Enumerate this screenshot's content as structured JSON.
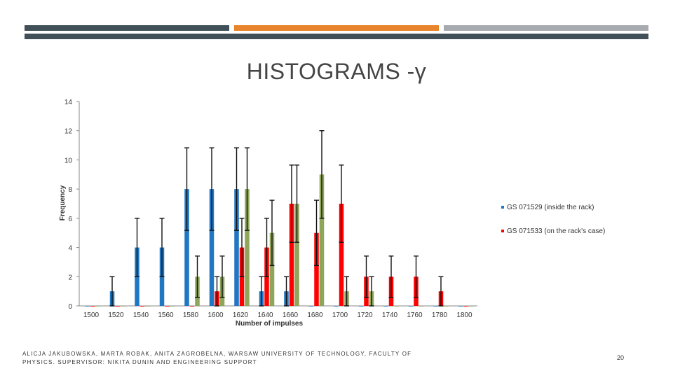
{
  "header_bars": [
    {
      "color": "#404f58"
    },
    {
      "color": "#e8842c"
    },
    {
      "color": "#a7abaf"
    }
  ],
  "slide_title": "HISTOGRAMS -γ",
  "footer_text": "ALICJA JAKUBOWSKA, MARTA ROBAK, ANITA ZAGROBELNA, WARSAW UNIVERSITY OF TECHNOLOGY, FACULTY OF PHYSICS. SUPERVISOR: NIKITA DUNIN AND ENGINEERING SUPPORT",
  "page_number": "20",
  "chart_data": {
    "type": "bar",
    "title": "",
    "xlabel": "Number of impulses",
    "ylabel": "Frequency",
    "ylim": [
      0,
      14
    ],
    "yticks": [
      0,
      2,
      4,
      6,
      8,
      10,
      12,
      14
    ],
    "categories": [
      "1500",
      "1520",
      "1540",
      "1560",
      "1580",
      "1600",
      "1620",
      "1640",
      "1660",
      "1680",
      "1700",
      "1720",
      "1740",
      "1760",
      "1780",
      "1800"
    ],
    "grid": false,
    "legend_position": "right",
    "error_bars": "sqrt(N)",
    "series": [
      {
        "name": "GS 071529 (inside the rack)",
        "color": "#1f77c4",
        "values": [
          0,
          1,
          4,
          4,
          8,
          8,
          8,
          1,
          1,
          0,
          0,
          0,
          0,
          0,
          0,
          0
        ]
      },
      {
        "name": "GS 071533 (on the rack's case)",
        "color": "#ff0000",
        "values": [
          0,
          0,
          0,
          0,
          0,
          1,
          4,
          4,
          7,
          5,
          7,
          2,
          2,
          2,
          1,
          0
        ]
      },
      {
        "color": "#8ea65a",
        "values": [
          0,
          0,
          0,
          0,
          2,
          2,
          8,
          5,
          7,
          9,
          1,
          1,
          0,
          0,
          0,
          0
        ]
      }
    ]
  }
}
